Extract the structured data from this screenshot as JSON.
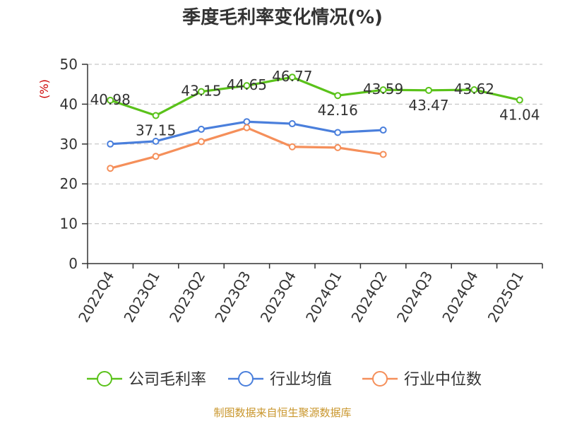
{
  "chart_data": {
    "type": "line",
    "title": "季度毛利率变化情况(%)",
    "ylabel": "(%)",
    "xlabel": "",
    "ylim": [
      0,
      50
    ],
    "yticks": [
      0,
      10,
      20,
      30,
      40,
      50
    ],
    "grid": true,
    "legend_position": "bottom",
    "categories": [
      "2022Q4",
      "2023Q1",
      "2023Q2",
      "2023Q3",
      "2023Q4",
      "2024Q1",
      "2024Q2",
      "2024Q3",
      "2024Q4",
      "2025Q1"
    ],
    "series": [
      {
        "name": "公司毛利率",
        "color": "#5ac21a",
        "values": [
          40.98,
          37.15,
          43.15,
          44.65,
          46.77,
          42.16,
          43.59,
          43.47,
          43.62,
          41.04
        ],
        "data_labels": [
          "40.98",
          "37.15",
          "43.15",
          "44.65",
          "46.77",
          "42.16",
          "43.59",
          "43.47",
          "43.62",
          "41.04"
        ]
      },
      {
        "name": "行业均值",
        "color": "#4a7fdc",
        "values": [
          30.0,
          30.7,
          33.7,
          35.6,
          35.1,
          32.9,
          33.5,
          null,
          null,
          null
        ]
      },
      {
        "name": "行业中位数",
        "color": "#f58f5a",
        "values": [
          23.9,
          26.9,
          30.6,
          34.1,
          29.3,
          29.1,
          27.4,
          null,
          null,
          null
        ]
      }
    ]
  },
  "source_text": "制图数据来自恒生聚源数据库",
  "colors": {
    "axis": "#333333",
    "grid": "#bbbbbb",
    "unit": "#cc0000",
    "source": "#c9962c"
  }
}
